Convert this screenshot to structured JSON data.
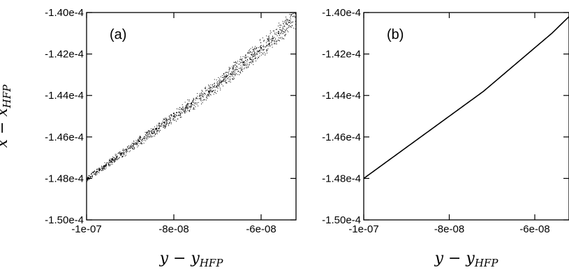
{
  "chart_data": [
    {
      "type": "scatter",
      "panel_label": "(a)",
      "xlabel": "y − y",
      "xlabel_subscript": "HFP",
      "ylabel": "x − x",
      "ylabel_subscript": "HFP",
      "xlim": [
        -1e-07,
        -5.2e-08
      ],
      "ylim": [
        -0.00015,
        -0.00014
      ],
      "x_ticks": [
        -1e-07,
        -8e-08,
        -6e-08
      ],
      "x_tick_labels": [
        "-1e-07",
        "-8e-08",
        "-6e-08"
      ],
      "y_ticks": [
        -0.00015,
        -0.000148,
        -0.000146,
        -0.000144,
        -0.000142,
        -0.00014
      ],
      "y_tick_labels": [
        "-1.50e-4",
        "-1.48e-4",
        "-1.46e-4",
        "-1.44e-4",
        "-1.42e-4",
        "-1.40e-4"
      ],
      "grid": false,
      "series": [
        {
          "x": [
            -1e-07,
            -9.6e-08,
            -9.2e-08,
            -8.8e-08,
            -8.4e-08,
            -8e-08,
            -7.6e-08,
            -7.2e-08,
            -6.8e-08,
            -6.4e-08,
            -6e-08,
            -5.6e-08,
            -5.2e-08
          ],
          "y": [
            -0.000148,
            -0.0001474,
            -0.0001468,
            -0.0001462,
            -0.0001456,
            -0.000145,
            -0.0001444,
            -0.0001438,
            -0.0001431,
            -0.0001424,
            -0.0001417,
            -0.000141,
            -0.0001402
          ]
        }
      ]
    },
    {
      "type": "line",
      "panel_label": "(b)",
      "xlabel": "y − y",
      "xlabel_subscript": "HFP",
      "xlim": [
        -1e-07,
        -5.2e-08
      ],
      "ylim": [
        -0.00015,
        -0.00014
      ],
      "x_ticks": [
        -1e-07,
        -8e-08,
        -6e-08
      ],
      "x_tick_labels": [
        "-1e-07",
        "-8e-08",
        "-6e-08"
      ],
      "y_ticks": [
        -0.00015,
        -0.000148,
        -0.000146,
        -0.000144,
        -0.000142,
        -0.00014
      ],
      "y_tick_labels": [
        "-1.50e-4",
        "-1.48e-4",
        "-1.46e-4",
        "-1.44e-4",
        "-1.42e-4",
        "-1.40e-4"
      ],
      "grid": false,
      "series": [
        {
          "x": [
            -1e-07,
            -9.6e-08,
            -9.2e-08,
            -8.8e-08,
            -8.4e-08,
            -8e-08,
            -7.6e-08,
            -7.2e-08,
            -6.8e-08,
            -6.4e-08,
            -6e-08,
            -5.6e-08,
            -5.2e-08
          ],
          "y": [
            -0.000148,
            -0.0001474,
            -0.0001468,
            -0.0001462,
            -0.0001456,
            -0.000145,
            -0.0001444,
            -0.0001438,
            -0.0001431,
            -0.0001424,
            -0.0001417,
            -0.000141,
            -0.0001402
          ]
        }
      ]
    }
  ]
}
